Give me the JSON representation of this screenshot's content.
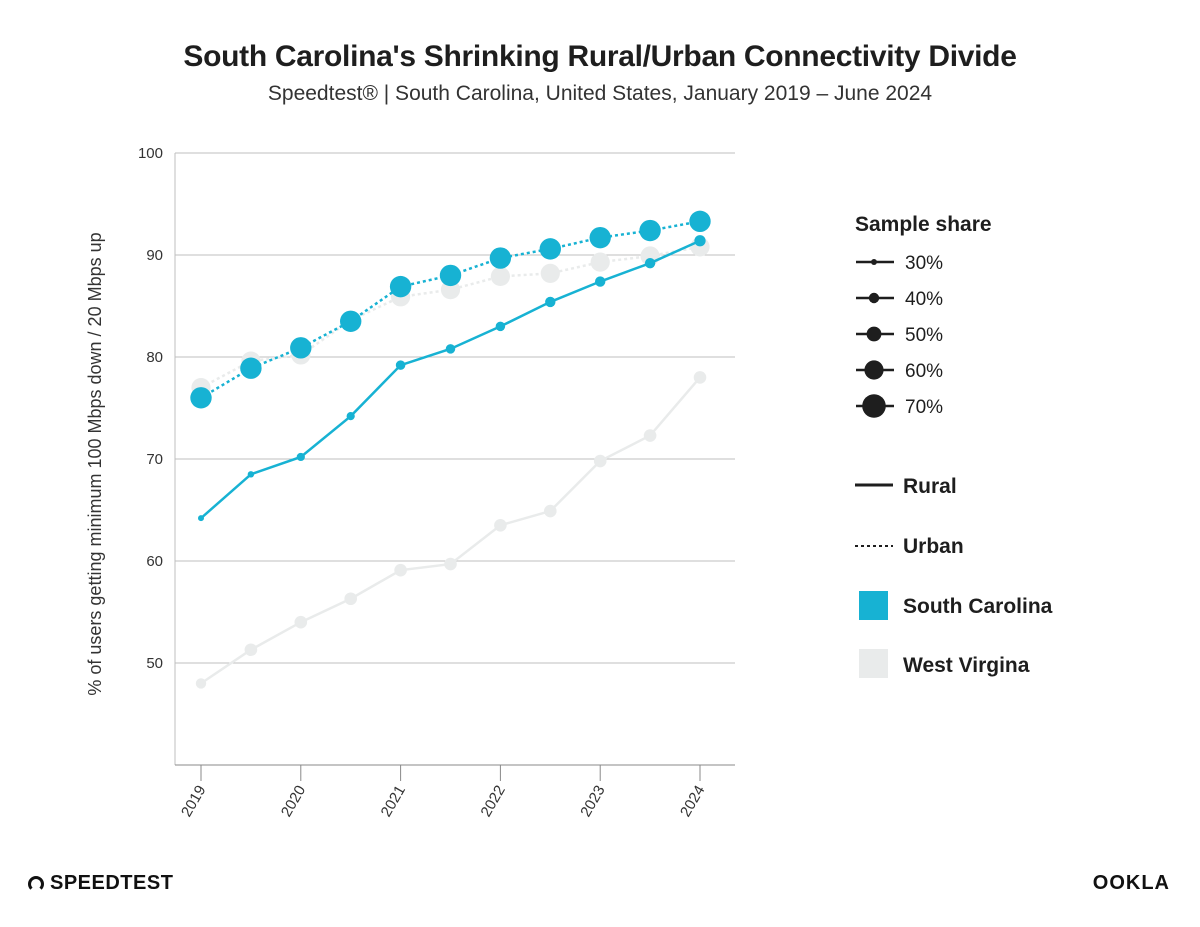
{
  "header": {
    "title": "South Carolina's Shrinking Rural/Urban Connectivity Divide",
    "subtitle": "Speedtest® | South Carolina, United States, January 2019 – June 2024"
  },
  "branding": {
    "left": "SPEEDTEST",
    "right": "OOKLA"
  },
  "colors": {
    "south_carolina": "#17b2d3",
    "west_virginia": "#e9ebeb",
    "grid": "#bfbfbf",
    "text": "#1e1e1e"
  },
  "legend": {
    "size_title": "Sample share",
    "size_items": [
      {
        "label": "30%",
        "share": 30
      },
      {
        "label": "40%",
        "share": 40
      },
      {
        "label": "50%",
        "share": 50
      },
      {
        "label": "60%",
        "share": 60
      },
      {
        "label": "70%",
        "share": 70
      }
    ],
    "rural_label": "Rural",
    "urban_label": "Urban",
    "sc_label": "South Carolina",
    "wv_label": "West Virgina"
  },
  "chart_data": {
    "type": "line",
    "title": "South Carolina's Shrinking Rural/Urban Connectivity Divide",
    "subtitle": "Speedtest® | South Carolina, United States, January 2019 – June 2024",
    "ylabel": "% of users getting minimum 100 Mbps down / 20 Mbps up",
    "xlabel": "",
    "ylim": [
      40,
      100
    ],
    "yticks": [
      50,
      60,
      70,
      80,
      90,
      100
    ],
    "xticks": [
      "2019",
      "2020",
      "2021",
      "2022",
      "2023",
      "2024"
    ],
    "x": [
      2019,
      2019.5,
      2020,
      2020.5,
      2021,
      2021.5,
      2022,
      2022.5,
      2023,
      2023.5,
      2024
    ],
    "grid": "horizontal",
    "legend_position": "right",
    "series": [
      {
        "name": "West Virgina",
        "category": "Urban",
        "style": "dotted",
        "color": "#e9ebeb",
        "values": [
          77.0,
          79.6,
          80.2,
          83.6,
          85.9,
          86.6,
          87.9,
          88.2,
          89.3,
          89.9,
          90.8
        ],
        "sample_share": [
          60,
          60,
          60,
          60,
          60,
          60,
          60,
          60,
          60,
          60,
          60
        ]
      },
      {
        "name": "West Virgina",
        "category": "Rural",
        "style": "solid",
        "color": "#e9ebeb",
        "values": [
          48.0,
          51.3,
          54.0,
          56.3,
          59.1,
          59.7,
          63.5,
          64.9,
          69.8,
          72.3,
          78.0
        ],
        "sample_share": [
          40,
          45,
          45,
          45,
          45,
          45,
          45,
          45,
          45,
          45,
          45
        ]
      },
      {
        "name": "South Carolina",
        "category": "Urban",
        "style": "dotted",
        "color": "#17b2d3",
        "values": [
          76.0,
          78.9,
          80.9,
          83.5,
          86.9,
          88.0,
          89.7,
          90.6,
          91.7,
          92.4,
          93.3
        ],
        "sample_share": [
          65,
          65,
          65,
          65,
          65,
          65,
          65,
          65,
          65,
          65,
          65
        ]
      },
      {
        "name": "South Carolina",
        "category": "Rural",
        "style": "solid",
        "color": "#17b2d3",
        "values": [
          64.2,
          68.5,
          70.2,
          74.2,
          79.2,
          80.8,
          83.0,
          85.4,
          87.4,
          89.2,
          91.4
        ],
        "sample_share": [
          30,
          31,
          35,
          35,
          38,
          38,
          38,
          40,
          40,
          40,
          42
        ]
      }
    ]
  }
}
